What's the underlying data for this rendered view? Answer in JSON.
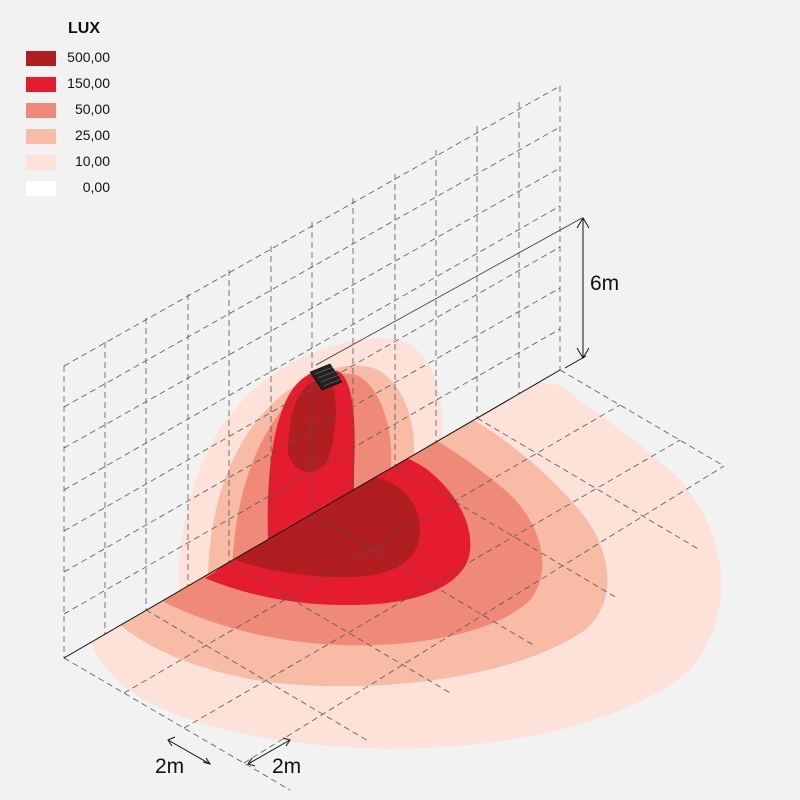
{
  "legend": {
    "title": "LUX",
    "items": [
      {
        "label": "500,00",
        "color": "#b01e22"
      },
      {
        "label": "150,00",
        "color": "#e41c2e"
      },
      {
        "label": "50,00",
        "color": "#ef8a78"
      },
      {
        "label": "25,00",
        "color": "#f7bba6"
      },
      {
        "label": "10,00",
        "color": "#fde2da"
      },
      {
        "label": "0,00",
        "color": "#ffffff"
      }
    ]
  },
  "dimensions": {
    "height_label": "6m",
    "grid_label_1": "2m",
    "grid_label_2": "2m"
  }
}
